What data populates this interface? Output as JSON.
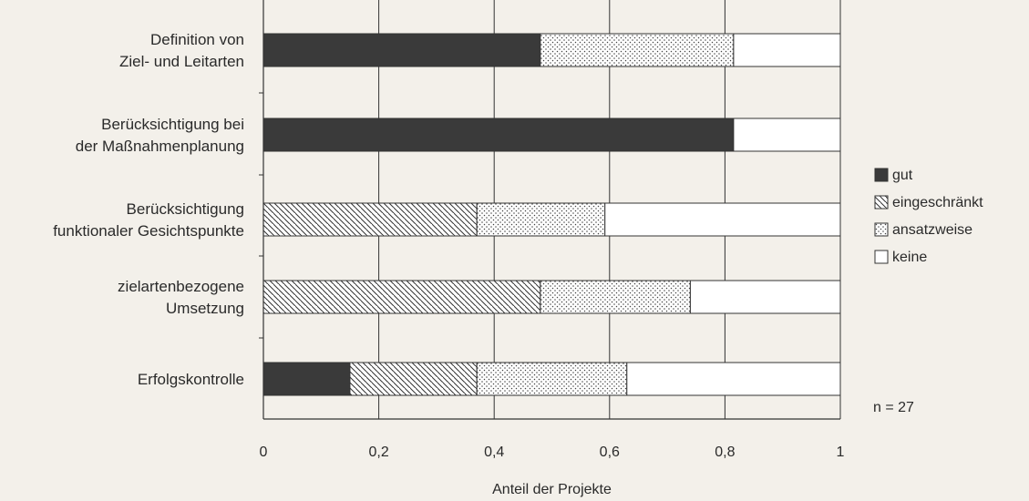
{
  "chart_data": {
    "type": "bar",
    "orientation": "horizontal",
    "stacked": true,
    "categories": [
      [
        "Definition von",
        "Ziel- und Leitarten"
      ],
      [
        "Berücksichtigung bei",
        "der Maßnahmenplanung"
      ],
      [
        "Berücksichtigung",
        "funktionaler Gesichtspunkte"
      ],
      [
        "zielartenbezogene",
        "Umsetzung"
      ],
      [
        "Erfolgskontrolle"
      ]
    ],
    "series": [
      {
        "name": "gut",
        "pattern": "solid",
        "values": [
          0.48,
          0.815,
          0,
          0,
          0.15
        ]
      },
      {
        "name": "eingeschränkt",
        "pattern": "hatch",
        "values": [
          0,
          0,
          0.37,
          0.48,
          0.22
        ]
      },
      {
        "name": "ansatzweise",
        "pattern": "dots",
        "values": [
          0.335,
          0,
          0.222,
          0.26,
          0.26
        ]
      },
      {
        "name": "keine",
        "pattern": "none",
        "values": [
          0.185,
          0.185,
          0.408,
          0.26,
          0.37
        ]
      }
    ],
    "xlabel": "Anteil der Projekte",
    "ylabel": "",
    "xlim": [
      0,
      1
    ],
    "xticks": [
      0,
      0.2,
      0.4,
      0.6,
      0.8,
      1
    ],
    "xtick_labels": [
      "0",
      "0,2",
      "0,4",
      "0,6",
      "0,8",
      "1"
    ],
    "grid": "vertical",
    "legend_position": "right",
    "annotation": "n = 27",
    "colors": {
      "solid": "#3a3a3a",
      "background": "#f3f0ea",
      "bar_fill": "#ffffff",
      "line": "#333333"
    }
  }
}
